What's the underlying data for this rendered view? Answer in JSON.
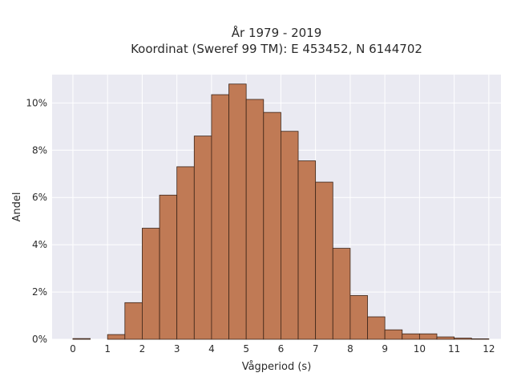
{
  "chart_data": {
    "type": "bar",
    "title_lines": [
      "År 1979 - 2019",
      "Koordinat (Sweref 99 TM): E 453452, N 6144702"
    ],
    "xlabel": "Vågperiod (s)",
    "ylabel": "Andel",
    "x_ticks": [
      "0",
      "1",
      "2",
      "3",
      "4",
      "5",
      "6",
      "7",
      "8",
      "9",
      "10",
      "11",
      "12"
    ],
    "y_ticks": [
      "0%",
      "2%",
      "4%",
      "6%",
      "8%",
      "10%"
    ],
    "xlim": [
      -0.6,
      12.35
    ],
    "ylim": [
      0,
      11.2
    ],
    "bin_width": 0.5,
    "bins": [
      {
        "x0": 0.0,
        "value": 0.03
      },
      {
        "x0": 1.0,
        "value": 0.2
      },
      {
        "x0": 1.5,
        "value": 1.55
      },
      {
        "x0": 2.0,
        "value": 4.7
      },
      {
        "x0": 2.5,
        "value": 6.1
      },
      {
        "x0": 3.0,
        "value": 7.3
      },
      {
        "x0": 3.5,
        "value": 8.6
      },
      {
        "x0": 4.0,
        "value": 10.35
      },
      {
        "x0": 4.5,
        "value": 10.8
      },
      {
        "x0": 5.0,
        "value": 10.15
      },
      {
        "x0": 5.5,
        "value": 9.6
      },
      {
        "x0": 6.0,
        "value": 8.8
      },
      {
        "x0": 6.5,
        "value": 7.55
      },
      {
        "x0": 7.0,
        "value": 6.65
      },
      {
        "x0": 7.5,
        "value": 3.85
      },
      {
        "x0": 8.0,
        "value": 1.85
      },
      {
        "x0": 8.5,
        "value": 0.95
      },
      {
        "x0": 9.0,
        "value": 0.4
      },
      {
        "x0": 9.5,
        "value": 0.23
      },
      {
        "x0": 10.0,
        "value": 0.23
      },
      {
        "x0": 10.5,
        "value": 0.1
      },
      {
        "x0": 11.0,
        "value": 0.05
      },
      {
        "x0": 11.5,
        "value": 0.02
      }
    ],
    "grid": true,
    "colors": {
      "bar_fill": "#c07a55",
      "bar_edge": "#3b2418",
      "plot_background": "#eaeaf2",
      "grid": "#ffffff"
    }
  }
}
